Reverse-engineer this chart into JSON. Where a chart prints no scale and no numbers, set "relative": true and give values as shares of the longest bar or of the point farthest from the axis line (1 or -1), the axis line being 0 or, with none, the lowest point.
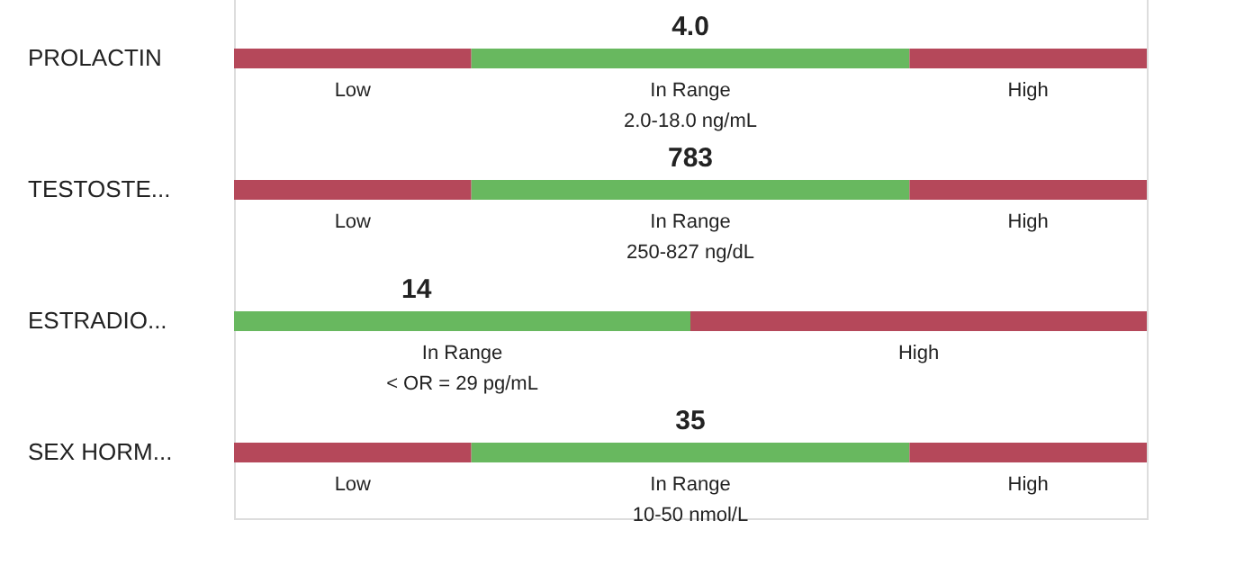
{
  "chart_data": {
    "type": "bar",
    "orientation": "horizontal",
    "stacked": true,
    "relative": true,
    "legend": false,
    "categories": [
      "PROLACTIN",
      "TESTOSTE...",
      "ESTRADIO...",
      "SEX HORM..."
    ],
    "series": [
      {
        "name": "Low",
        "color": "#b5485a",
        "values": [
          0.26,
          0.26,
          null,
          0.26
        ]
      },
      {
        "name": "In Range",
        "color": "#68b85f",
        "values": [
          0.48,
          0.48,
          0.5,
          0.48
        ]
      },
      {
        "name": "High",
        "color": "#b5485a",
        "values": [
          0.26,
          0.26,
          0.5,
          0.26
        ]
      }
    ],
    "annotations": [
      {
        "text": "4.0",
        "x": 0.5,
        "y": "PROLACTIN"
      },
      {
        "text": "2.0-18.0 ng/mL",
        "x": 0.5,
        "y": "PROLACTIN"
      },
      {
        "text": "783",
        "x": 0.5,
        "y": "TESTOSTE..."
      },
      {
        "text": "250-827 ng/dL",
        "x": 0.5,
        "y": "TESTOSTE..."
      },
      {
        "text": "14",
        "x": 0.2,
        "y": "ESTRADIO..."
      },
      {
        "text": "< OR = 29 pg/mL",
        "x": 0.25,
        "y": "ESTRADIO..."
      },
      {
        "text": "35",
        "x": 0.5,
        "y": "SEX HORM..."
      },
      {
        "text": "10-50 nmol/L",
        "x": 0.5,
        "y": "SEX HORM..."
      }
    ]
  }
}
